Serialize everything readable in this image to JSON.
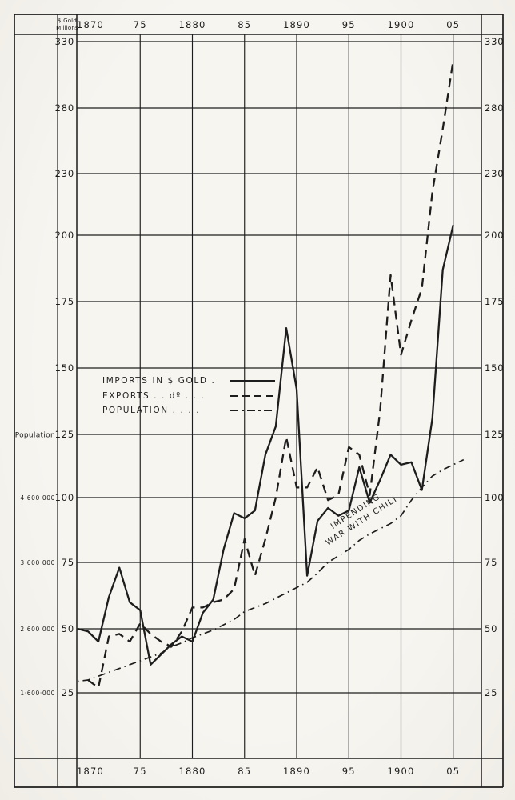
{
  "page": {
    "ink": "#1d1d1d",
    "corner_label_line1": "$ Gold",
    "corner_label_line2": "Millions",
    "population_axis_title": "Population"
  },
  "legend": {
    "items": [
      {
        "label": "IMPORTS IN $ GOLD .",
        "style": "solid"
      },
      {
        "label": "EXPORTS . . dº . . .",
        "style": "dashed"
      },
      {
        "label": "POPULATION  . . . .",
        "style": "dashdot"
      }
    ]
  },
  "annotation": {
    "line1": "IMPENDING",
    "line2": "WAR WITH CHILI"
  },
  "chart_data": {
    "type": "line",
    "title": "Imports, exports ($ gold millions) and population, 1870-1905",
    "grid": true,
    "x_axis": {
      "ticks": [
        1870,
        1875,
        1880,
        1885,
        1890,
        1895,
        1900,
        1905
      ],
      "tick_labels": [
        "1870",
        "75",
        "1880",
        "85",
        "1890",
        "95",
        "1900",
        "05"
      ],
      "label_positions": [
        "top",
        "bottom"
      ],
      "range_years": [
        1869,
        1907.5
      ]
    },
    "y_axis_dollars": {
      "title": "$ Gold Millions",
      "tick_values": [
        330,
        280,
        230,
        200,
        175,
        150,
        125,
        100,
        75,
        50,
        25
      ],
      "note": "ticks evenly spaced; scale compressed above 200",
      "shown_on": [
        "left",
        "right"
      ]
    },
    "y_axis_population": {
      "title": "Population",
      "tick_labels": [
        "4 600 000",
        "3 600 000",
        "2 600 000",
        "1·600·000"
      ],
      "tick_at_dollar_values": [
        100,
        75,
        50,
        25
      ],
      "persons_per_dollar_unit": 40000
    },
    "series": [
      {
        "name": "Imports in $ gold",
        "unit": "$ gold millions",
        "style": "solid",
        "points": [
          [
            1869,
            50
          ],
          [
            1870,
            49
          ],
          [
            1871,
            45
          ],
          [
            1872,
            62
          ],
          [
            1873,
            73
          ],
          [
            1874,
            60
          ],
          [
            1875,
            57
          ],
          [
            1876,
            36
          ],
          [
            1877,
            40
          ],
          [
            1878,
            44
          ],
          [
            1879,
            47
          ],
          [
            1880,
            45
          ],
          [
            1881,
            56
          ],
          [
            1882,
            61
          ],
          [
            1883,
            80
          ],
          [
            1884,
            94
          ],
          [
            1885,
            92
          ],
          [
            1886,
            95
          ],
          [
            1887,
            117
          ],
          [
            1888,
            128
          ],
          [
            1889,
            165
          ],
          [
            1890,
            142
          ],
          [
            1891,
            70
          ],
          [
            1892,
            91
          ],
          [
            1893,
            96
          ],
          [
            1894,
            93
          ],
          [
            1895,
            95
          ],
          [
            1896,
            112
          ],
          [
            1897,
            98
          ],
          [
            1898,
            107
          ],
          [
            1899,
            117
          ],
          [
            1900,
            113
          ],
          [
            1901,
            114
          ],
          [
            1902,
            103
          ],
          [
            1903,
            131
          ],
          [
            1904,
            187
          ],
          [
            1905,
            205
          ]
        ]
      },
      {
        "name": "Exports",
        "unit": "$ gold millions",
        "style": "dashed",
        "points": [
          [
            1870,
            30
          ],
          [
            1871,
            27
          ],
          [
            1872,
            47
          ],
          [
            1873,
            48
          ],
          [
            1874,
            45
          ],
          [
            1875,
            52
          ],
          [
            1876,
            48
          ],
          [
            1877,
            45
          ],
          [
            1878,
            43
          ],
          [
            1879,
            49
          ],
          [
            1880,
            58
          ],
          [
            1881,
            58
          ],
          [
            1882,
            60
          ],
          [
            1883,
            61
          ],
          [
            1884,
            65
          ],
          [
            1885,
            84
          ],
          [
            1886,
            70
          ],
          [
            1887,
            84
          ],
          [
            1888,
            100
          ],
          [
            1889,
            124
          ],
          [
            1890,
            104
          ],
          [
            1891,
            104
          ],
          [
            1892,
            112
          ],
          [
            1893,
            99
          ],
          [
            1894,
            101
          ],
          [
            1895,
            120
          ],
          [
            1896,
            117
          ],
          [
            1897,
            101
          ],
          [
            1898,
            134
          ],
          [
            1899,
            185
          ],
          [
            1900,
            155
          ],
          [
            1901,
            168
          ],
          [
            1902,
            180
          ],
          [
            1903,
            221
          ],
          [
            1904,
            264
          ],
          [
            1905,
            316
          ]
        ]
      },
      {
        "name": "Population",
        "unit": "millions of persons",
        "style": "dashdot",
        "points": [
          [
            1869,
            1.78
          ],
          [
            1870,
            1.8
          ],
          [
            1871,
            1.86
          ],
          [
            1872,
            1.92
          ],
          [
            1873,
            1.98
          ],
          [
            1874,
            2.04
          ],
          [
            1875,
            2.1
          ],
          [
            1876,
            2.16
          ],
          [
            1877,
            2.22
          ],
          [
            1878,
            2.32
          ],
          [
            1879,
            2.38
          ],
          [
            1880,
            2.46
          ],
          [
            1881,
            2.52
          ],
          [
            1882,
            2.58
          ],
          [
            1883,
            2.66
          ],
          [
            1884,
            2.74
          ],
          [
            1885,
            2.86
          ],
          [
            1886,
            2.92
          ],
          [
            1887,
            2.98
          ],
          [
            1888,
            3.06
          ],
          [
            1889,
            3.14
          ],
          [
            1890,
            3.22
          ],
          [
            1891,
            3.3
          ],
          [
            1892,
            3.44
          ],
          [
            1893,
            3.6
          ],
          [
            1894,
            3.7
          ],
          [
            1895,
            3.8
          ],
          [
            1896,
            3.94
          ],
          [
            1897,
            4.04
          ],
          [
            1898,
            4.12
          ],
          [
            1899,
            4.2
          ],
          [
            1900,
            4.32
          ],
          [
            1901,
            4.56
          ],
          [
            1902,
            4.76
          ],
          [
            1903,
            4.94
          ],
          [
            1904,
            5.04
          ],
          [
            1905,
            5.12
          ],
          [
            1906,
            5.2
          ]
        ]
      }
    ],
    "annotation": {
      "text": [
        "IMPENDING",
        "WAR WITH CHILI"
      ],
      "at_year": 1898,
      "rotation_deg": -33
    },
    "legend_position": "middle-left"
  }
}
